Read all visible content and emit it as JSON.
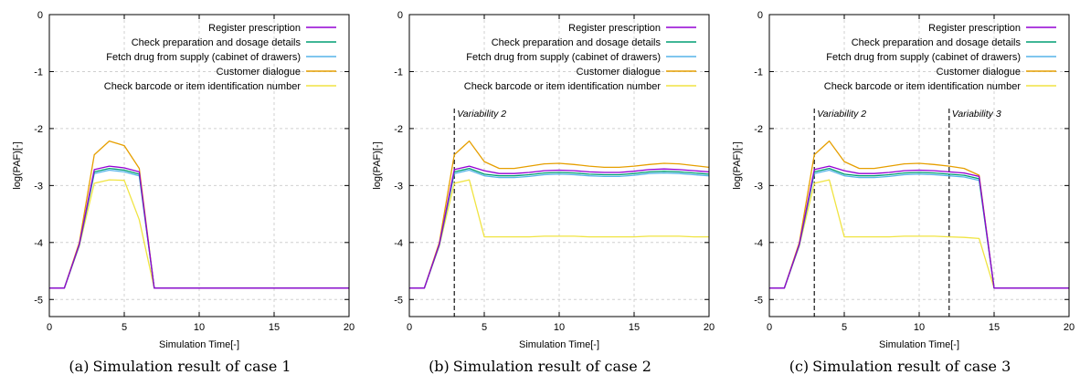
{
  "figure": {
    "panels": [
      {
        "label": "(a)",
        "caption": "Simulation result of case 1"
      },
      {
        "label": "(b)",
        "caption": "Simulation result of case 2"
      },
      {
        "label": "(c)",
        "caption": "Simulation result of case 3"
      }
    ]
  },
  "chart_data": [
    {
      "type": "line",
      "xlabel": "Simulation Time[-]",
      "ylabel": "log(PAF)[-]",
      "xlim": [
        0,
        20
      ],
      "ylim": [
        -5.3,
        0
      ],
      "xticks": [
        0,
        5,
        10,
        15,
        20
      ],
      "yticks": [
        0,
        -1,
        -2,
        -3,
        -4,
        -5
      ],
      "grid": true,
      "legend_position": "top-right",
      "annotations": [],
      "series": [
        {
          "name": "Register prescription",
          "color": "#9400d3",
          "x": [
            0,
            1,
            2,
            3,
            4,
            5,
            6,
            7,
            8,
            20
          ],
          "y": [
            -4.8,
            -4.8,
            -4.03,
            -2.72,
            -2.66,
            -2.69,
            -2.76,
            -4.8,
            -4.8,
            -4.8
          ]
        },
        {
          "name": "Check preparation and dosage details",
          "color": "#009e73",
          "x": [
            0,
            1,
            2,
            3,
            4,
            5,
            6,
            7,
            8,
            20
          ],
          "y": [
            -4.8,
            -4.8,
            -4.04,
            -2.76,
            -2.7,
            -2.73,
            -2.8,
            -4.8,
            -4.8,
            -4.8
          ]
        },
        {
          "name": "Fetch drug from supply (cabinet of drawers)",
          "color": "#56b4e9",
          "x": [
            0,
            1,
            2,
            3,
            4,
            5,
            6,
            7,
            8,
            20
          ],
          "y": [
            -4.8,
            -4.8,
            -4.05,
            -2.79,
            -2.73,
            -2.76,
            -2.83,
            -4.8,
            -4.8,
            -4.8
          ]
        },
        {
          "name": "Customer dialogue",
          "color": "#e69f00",
          "x": [
            0,
            1,
            2,
            3,
            4,
            5,
            6,
            7,
            8,
            20
          ],
          "y": [
            -4.8,
            -4.8,
            -4.0,
            -2.46,
            -2.22,
            -2.3,
            -2.7,
            -4.8,
            -4.8,
            -4.8
          ]
        },
        {
          "name": "Check barcode or item identification number",
          "color": "#f0e442",
          "x": [
            0,
            1,
            2,
            3,
            4,
            5,
            6,
            7,
            8,
            20
          ],
          "y": [
            -4.8,
            -4.8,
            -4.06,
            -2.96,
            -2.9,
            -2.91,
            -3.6,
            -4.8,
            -4.8,
            -4.8
          ]
        }
      ]
    },
    {
      "type": "line",
      "xlabel": "Simulation Time[-]",
      "ylabel": "log(PAF)[-]",
      "xlim": [
        0,
        20
      ],
      "ylim": [
        -5.3,
        0
      ],
      "xticks": [
        0,
        5,
        10,
        15,
        20
      ],
      "yticks": [
        0,
        -1,
        -2,
        -3,
        -4,
        -5
      ],
      "grid": true,
      "legend_position": "top-right",
      "annotations": [
        {
          "x": 3,
          "label": "Variability 2"
        }
      ],
      "series": [
        {
          "name": "Register prescription",
          "color": "#9400d3",
          "x": [
            0,
            1,
            2,
            3,
            4,
            5,
            6,
            7,
            8,
            9,
            10,
            11,
            12,
            13,
            14,
            15,
            16,
            17,
            18,
            19,
            20
          ],
          "y": [
            -4.8,
            -4.8,
            -4.03,
            -2.72,
            -2.66,
            -2.74,
            -2.79,
            -2.79,
            -2.77,
            -2.74,
            -2.73,
            -2.74,
            -2.76,
            -2.77,
            -2.77,
            -2.75,
            -2.72,
            -2.71,
            -2.72,
            -2.74,
            -2.76
          ]
        },
        {
          "name": "Check preparation and dosage details",
          "color": "#009e73",
          "x": [
            0,
            1,
            2,
            3,
            4,
            5,
            6,
            7,
            8,
            9,
            10,
            11,
            12,
            13,
            14,
            15,
            16,
            17,
            18,
            19,
            20
          ],
          "y": [
            -4.8,
            -4.8,
            -4.04,
            -2.76,
            -2.7,
            -2.8,
            -2.83,
            -2.83,
            -2.81,
            -2.78,
            -2.77,
            -2.78,
            -2.8,
            -2.81,
            -2.81,
            -2.79,
            -2.76,
            -2.75,
            -2.76,
            -2.78,
            -2.8
          ]
        },
        {
          "name": "Fetch drug from supply (cabinet of drawers)",
          "color": "#56b4e9",
          "x": [
            0,
            1,
            2,
            3,
            4,
            5,
            6,
            7,
            8,
            9,
            10,
            11,
            12,
            13,
            14,
            15,
            16,
            17,
            18,
            19,
            20
          ],
          "y": [
            -4.8,
            -4.8,
            -4.05,
            -2.79,
            -2.73,
            -2.83,
            -2.86,
            -2.86,
            -2.84,
            -2.81,
            -2.8,
            -2.81,
            -2.83,
            -2.84,
            -2.84,
            -2.82,
            -2.79,
            -2.78,
            -2.79,
            -2.81,
            -2.83
          ]
        },
        {
          "name": "Customer dialogue",
          "color": "#e69f00",
          "x": [
            0,
            1,
            2,
            3,
            4,
            5,
            6,
            7,
            8,
            9,
            10,
            11,
            12,
            13,
            14,
            15,
            16,
            17,
            18,
            19,
            20
          ],
          "y": [
            -4.8,
            -4.8,
            -4.0,
            -2.46,
            -2.22,
            -2.58,
            -2.7,
            -2.7,
            -2.66,
            -2.62,
            -2.61,
            -2.63,
            -2.66,
            -2.68,
            -2.68,
            -2.66,
            -2.63,
            -2.61,
            -2.62,
            -2.65,
            -2.68
          ]
        },
        {
          "name": "Check barcode or item identification number",
          "color": "#f0e442",
          "x": [
            0,
            1,
            2,
            3,
            4,
            5,
            6,
            7,
            8,
            9,
            10,
            11,
            12,
            13,
            14,
            15,
            16,
            17,
            18,
            19,
            20
          ],
          "y": [
            -4.8,
            -4.8,
            -4.06,
            -2.96,
            -2.9,
            -3.9,
            -3.9,
            -3.9,
            -3.9,
            -3.89,
            -3.89,
            -3.89,
            -3.9,
            -3.9,
            -3.9,
            -3.9,
            -3.89,
            -3.89,
            -3.89,
            -3.9,
            -3.9
          ]
        }
      ]
    },
    {
      "type": "line",
      "xlabel": "Simulation Time[-]",
      "ylabel": "log(PAF)[-]",
      "xlim": [
        0,
        20
      ],
      "ylim": [
        -5.3,
        0
      ],
      "xticks": [
        0,
        5,
        10,
        15,
        20
      ],
      "yticks": [
        0,
        -1,
        -2,
        -3,
        -4,
        -5
      ],
      "grid": true,
      "legend_position": "top-right",
      "annotations": [
        {
          "x": 3,
          "label": "Variability 2"
        },
        {
          "x": 12,
          "label": "Variability 3"
        }
      ],
      "series": [
        {
          "name": "Register prescription",
          "color": "#9400d3",
          "x": [
            0,
            1,
            2,
            3,
            4,
            5,
            6,
            7,
            8,
            9,
            10,
            11,
            12,
            13,
            14,
            15,
            16,
            17,
            18,
            19,
            20
          ],
          "y": [
            -4.8,
            -4.8,
            -4.03,
            -2.72,
            -2.66,
            -2.74,
            -2.79,
            -2.79,
            -2.77,
            -2.74,
            -2.73,
            -2.74,
            -2.76,
            -2.78,
            -2.84,
            -4.8,
            -4.8,
            -4.8,
            -4.8,
            -4.8,
            -4.8
          ]
        },
        {
          "name": "Check preparation and dosage details",
          "color": "#009e73",
          "x": [
            0,
            1,
            2,
            3,
            4,
            5,
            6,
            7,
            8,
            9,
            10,
            11,
            12,
            13,
            14,
            15,
            16,
            17,
            18,
            19,
            20
          ],
          "y": [
            -4.8,
            -4.8,
            -4.04,
            -2.76,
            -2.7,
            -2.8,
            -2.83,
            -2.83,
            -2.81,
            -2.78,
            -2.77,
            -2.78,
            -2.8,
            -2.82,
            -2.88,
            -4.8,
            -4.8,
            -4.8,
            -4.8,
            -4.8,
            -4.8
          ]
        },
        {
          "name": "Fetch drug from supply (cabinet of drawers)",
          "color": "#56b4e9",
          "x": [
            0,
            1,
            2,
            3,
            4,
            5,
            6,
            7,
            8,
            9,
            10,
            11,
            12,
            13,
            14,
            15,
            16,
            17,
            18,
            19,
            20
          ],
          "y": [
            -4.8,
            -4.8,
            -4.05,
            -2.79,
            -2.73,
            -2.83,
            -2.86,
            -2.86,
            -2.84,
            -2.81,
            -2.8,
            -2.81,
            -2.83,
            -2.85,
            -2.91,
            -4.8,
            -4.8,
            -4.8,
            -4.8,
            -4.8,
            -4.8
          ]
        },
        {
          "name": "Customer dialogue",
          "color": "#e69f00",
          "x": [
            0,
            1,
            2,
            3,
            4,
            5,
            6,
            7,
            8,
            9,
            10,
            11,
            12,
            13,
            14,
            15,
            16,
            17,
            18,
            19,
            20
          ],
          "y": [
            -4.8,
            -4.8,
            -4.0,
            -2.46,
            -2.22,
            -2.58,
            -2.7,
            -2.7,
            -2.66,
            -2.62,
            -2.61,
            -2.63,
            -2.66,
            -2.7,
            -2.82,
            -4.8,
            -4.8,
            -4.8,
            -4.8,
            -4.8,
            -4.8
          ]
        },
        {
          "name": "Check barcode or item identification number",
          "color": "#f0e442",
          "x": [
            0,
            1,
            2,
            3,
            4,
            5,
            6,
            7,
            8,
            9,
            10,
            11,
            12,
            13,
            14,
            15,
            16,
            17,
            18,
            19,
            20
          ],
          "y": [
            -4.8,
            -4.8,
            -4.06,
            -2.96,
            -2.9,
            -3.9,
            -3.9,
            -3.9,
            -3.9,
            -3.89,
            -3.89,
            -3.89,
            -3.9,
            -3.91,
            -3.93,
            -4.8,
            -4.8,
            -4.8,
            -4.8,
            -4.8,
            -4.8
          ]
        }
      ]
    }
  ]
}
